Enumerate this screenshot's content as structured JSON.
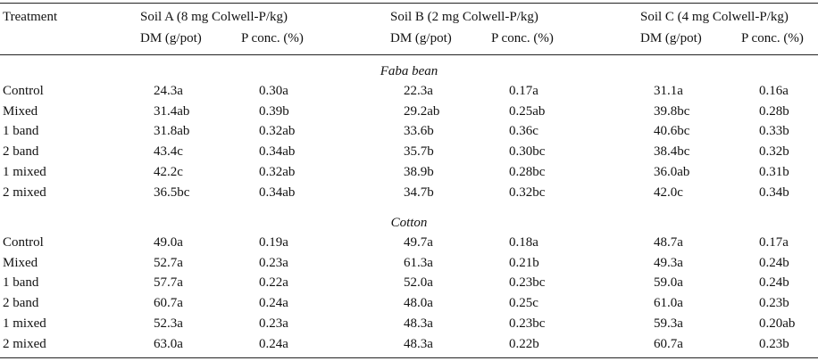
{
  "header": {
    "treatment": "Treatment",
    "soils": [
      "Soil A (8 mg Colwell-P/kg)",
      "Soil B (2 mg Colwell-P/kg)",
      "Soil C (4 mg Colwell-P/kg)"
    ],
    "dm": "DM (g/pot)",
    "pconc": "P conc. (%)"
  },
  "sections": [
    {
      "title": "Faba bean",
      "rows": [
        {
          "t": "Control",
          "v": [
            "24.3a",
            "0.30a",
            "22.3a",
            "0.17a",
            "31.1a",
            "0.16a"
          ]
        },
        {
          "t": "Mixed",
          "v": [
            "31.4ab",
            "0.39b",
            "29.2ab",
            "0.25ab",
            "39.8bc",
            "0.28b"
          ]
        },
        {
          "t": "1 band",
          "v": [
            "31.8ab",
            "0.32ab",
            "33.6b",
            "0.36c",
            "40.6bc",
            "0.33b"
          ]
        },
        {
          "t": "2 band",
          "v": [
            "43.4c",
            "0.34ab",
            "35.7b",
            "0.30bc",
            "38.4bc",
            "0.32b"
          ]
        },
        {
          "t": "1 mixed",
          "v": [
            "42.2c",
            "0.32ab",
            "38.9b",
            "0.28bc",
            "36.0ab",
            "0.31b"
          ]
        },
        {
          "t": "2 mixed",
          "v": [
            "36.5bc",
            "0.34ab",
            "34.7b",
            "0.32bc",
            "42.0c",
            "0.34b"
          ]
        }
      ]
    },
    {
      "title": "Cotton",
      "rows": [
        {
          "t": "Control",
          "v": [
            "49.0a",
            "0.19a",
            "49.7a",
            "0.18a",
            "48.7a",
            "0.17a"
          ]
        },
        {
          "t": "Mixed",
          "v": [
            "52.7a",
            "0.23a",
            "61.3a",
            "0.21b",
            "49.3a",
            "0.24b"
          ]
        },
        {
          "t": "1 band",
          "v": [
            "57.7a",
            "0.22a",
            "52.0a",
            "0.23bc",
            "59.0a",
            "0.24b"
          ]
        },
        {
          "t": "2 band",
          "v": [
            "60.7a",
            "0.24a",
            "48.0a",
            "0.25c",
            "61.0a",
            "0.23b"
          ]
        },
        {
          "t": "1 mixed",
          "v": [
            "52.3a",
            "0.23a",
            "48.3a",
            "0.23bc",
            "59.3a",
            "0.20ab"
          ]
        },
        {
          "t": "2 mixed",
          "v": [
            "63.0a",
            "0.24a",
            "48.3a",
            "0.22b",
            "60.7a",
            "0.23b"
          ]
        }
      ]
    }
  ]
}
